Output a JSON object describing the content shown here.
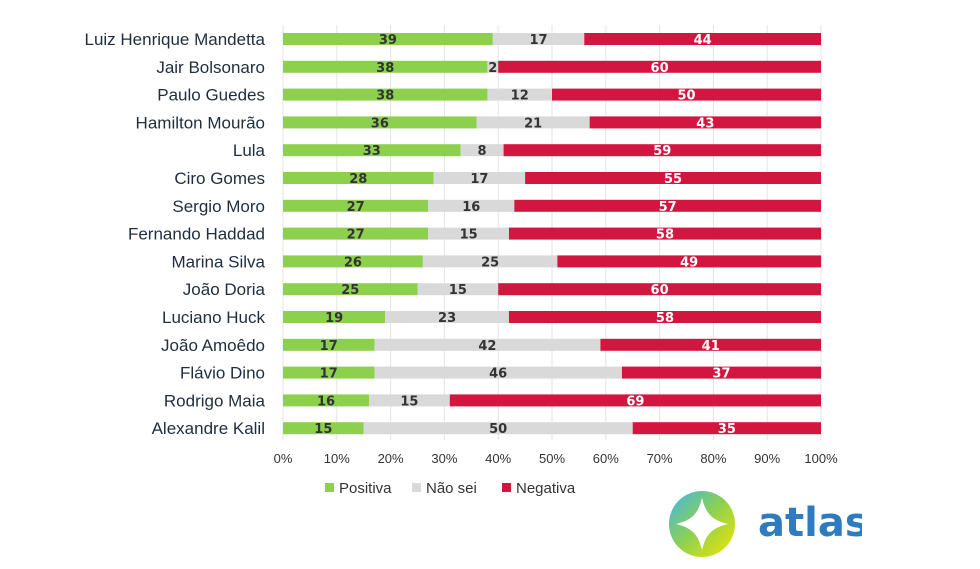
{
  "chart_data": {
    "type": "bar",
    "orientation": "horizontal",
    "stacked": "percent",
    "categories": [
      "Luiz Henrique Mandetta",
      "Jair Bolsonaro",
      "Paulo Guedes",
      "Hamilton Mourão",
      "Lula",
      "Ciro Gomes",
      "Sergio Moro",
      "Fernando Haddad",
      "Marina Silva",
      "João Doria",
      "Luciano Huck",
      "João Amoêdo",
      "Flávio Dino",
      "Rodrigo Maia",
      "Alexandre Kalil"
    ],
    "series": [
      {
        "name": "Positiva",
        "color": "#8cd04e",
        "label_color": "#333333",
        "values": [
          39,
          38,
          38,
          36,
          33,
          28,
          27,
          27,
          26,
          25,
          19,
          17,
          17,
          16,
          15
        ]
      },
      {
        "name": "Não sei",
        "color": "#d9d9d9",
        "label_color": "#333333",
        "values": [
          17,
          2,
          12,
          21,
          8,
          17,
          16,
          15,
          25,
          15,
          23,
          42,
          46,
          15,
          50
        ]
      },
      {
        "name": "Negativa",
        "color": "#d2163f",
        "label_color": "#ffffff",
        "values": [
          44,
          60,
          50,
          43,
          59,
          55,
          57,
          58,
          49,
          60,
          58,
          41,
          37,
          69,
          35
        ]
      }
    ],
    "x_ticks": [
      "0%",
      "10%",
      "20%",
      "30%",
      "40%",
      "50%",
      "60%",
      "70%",
      "80%",
      "90%",
      "100%"
    ],
    "xlim": [
      0,
      100
    ],
    "grid": "vertical",
    "legend_position": "bottom"
  },
  "logo": {
    "text": "atlas",
    "text_color": "#2e7bbf"
  }
}
